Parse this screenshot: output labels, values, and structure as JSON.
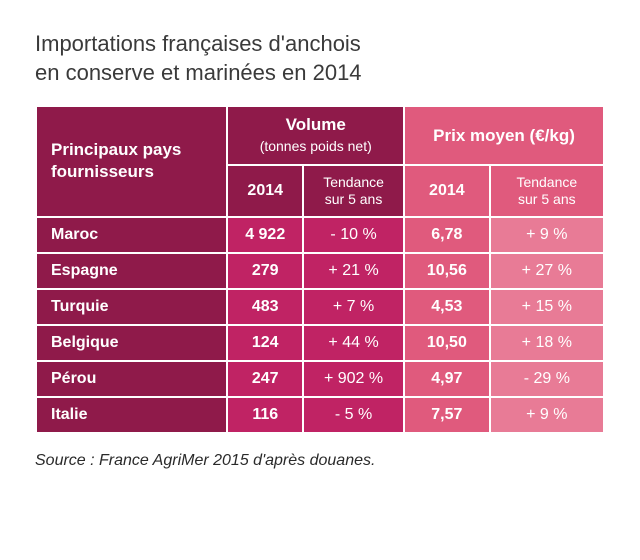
{
  "title_line1": "Importations françaises d'anchois",
  "title_line2": "en conserve et marinées en 2014",
  "colors": {
    "dark_magenta": "#8f1a4a",
    "magenta": "#c02364",
    "rose": "#e05a7d",
    "light_rose": "#e87b96"
  },
  "headers": {
    "country": "Principaux pays fournisseurs",
    "volume_label": "Volume",
    "volume_sub": "(tonnes poids net)",
    "price_label": "Prix moyen (€/kg)",
    "year": "2014",
    "trend": "Tendance sur 5 ans"
  },
  "rows": [
    {
      "country": "Maroc",
      "vol": "4 922",
      "vol_trend": "- 10 %",
      "price": "6,78",
      "price_trend": "+ 9 %"
    },
    {
      "country": "Espagne",
      "vol": "279",
      "vol_trend": "+ 21 %",
      "price": "10,56",
      "price_trend": "+ 27 %"
    },
    {
      "country": "Turquie",
      "vol": "483",
      "vol_trend": "+ 7 %",
      "price": "4,53",
      "price_trend": "+ 15 %"
    },
    {
      "country": "Belgique",
      "vol": "124",
      "vol_trend": "+ 44 %",
      "price": "10,50",
      "price_trend": "+ 18 %"
    },
    {
      "country": "Pérou",
      "vol": "247",
      "vol_trend": "+ 902 %",
      "price": "4,97",
      "price_trend": "- 29 %"
    },
    {
      "country": "Italie",
      "vol": "116",
      "vol_trend": "- 5 %",
      "price": "7,57",
      "price_trend": "+ 9 %"
    }
  ],
  "source": "Source : France AgriMer 2015 d'après douanes."
}
